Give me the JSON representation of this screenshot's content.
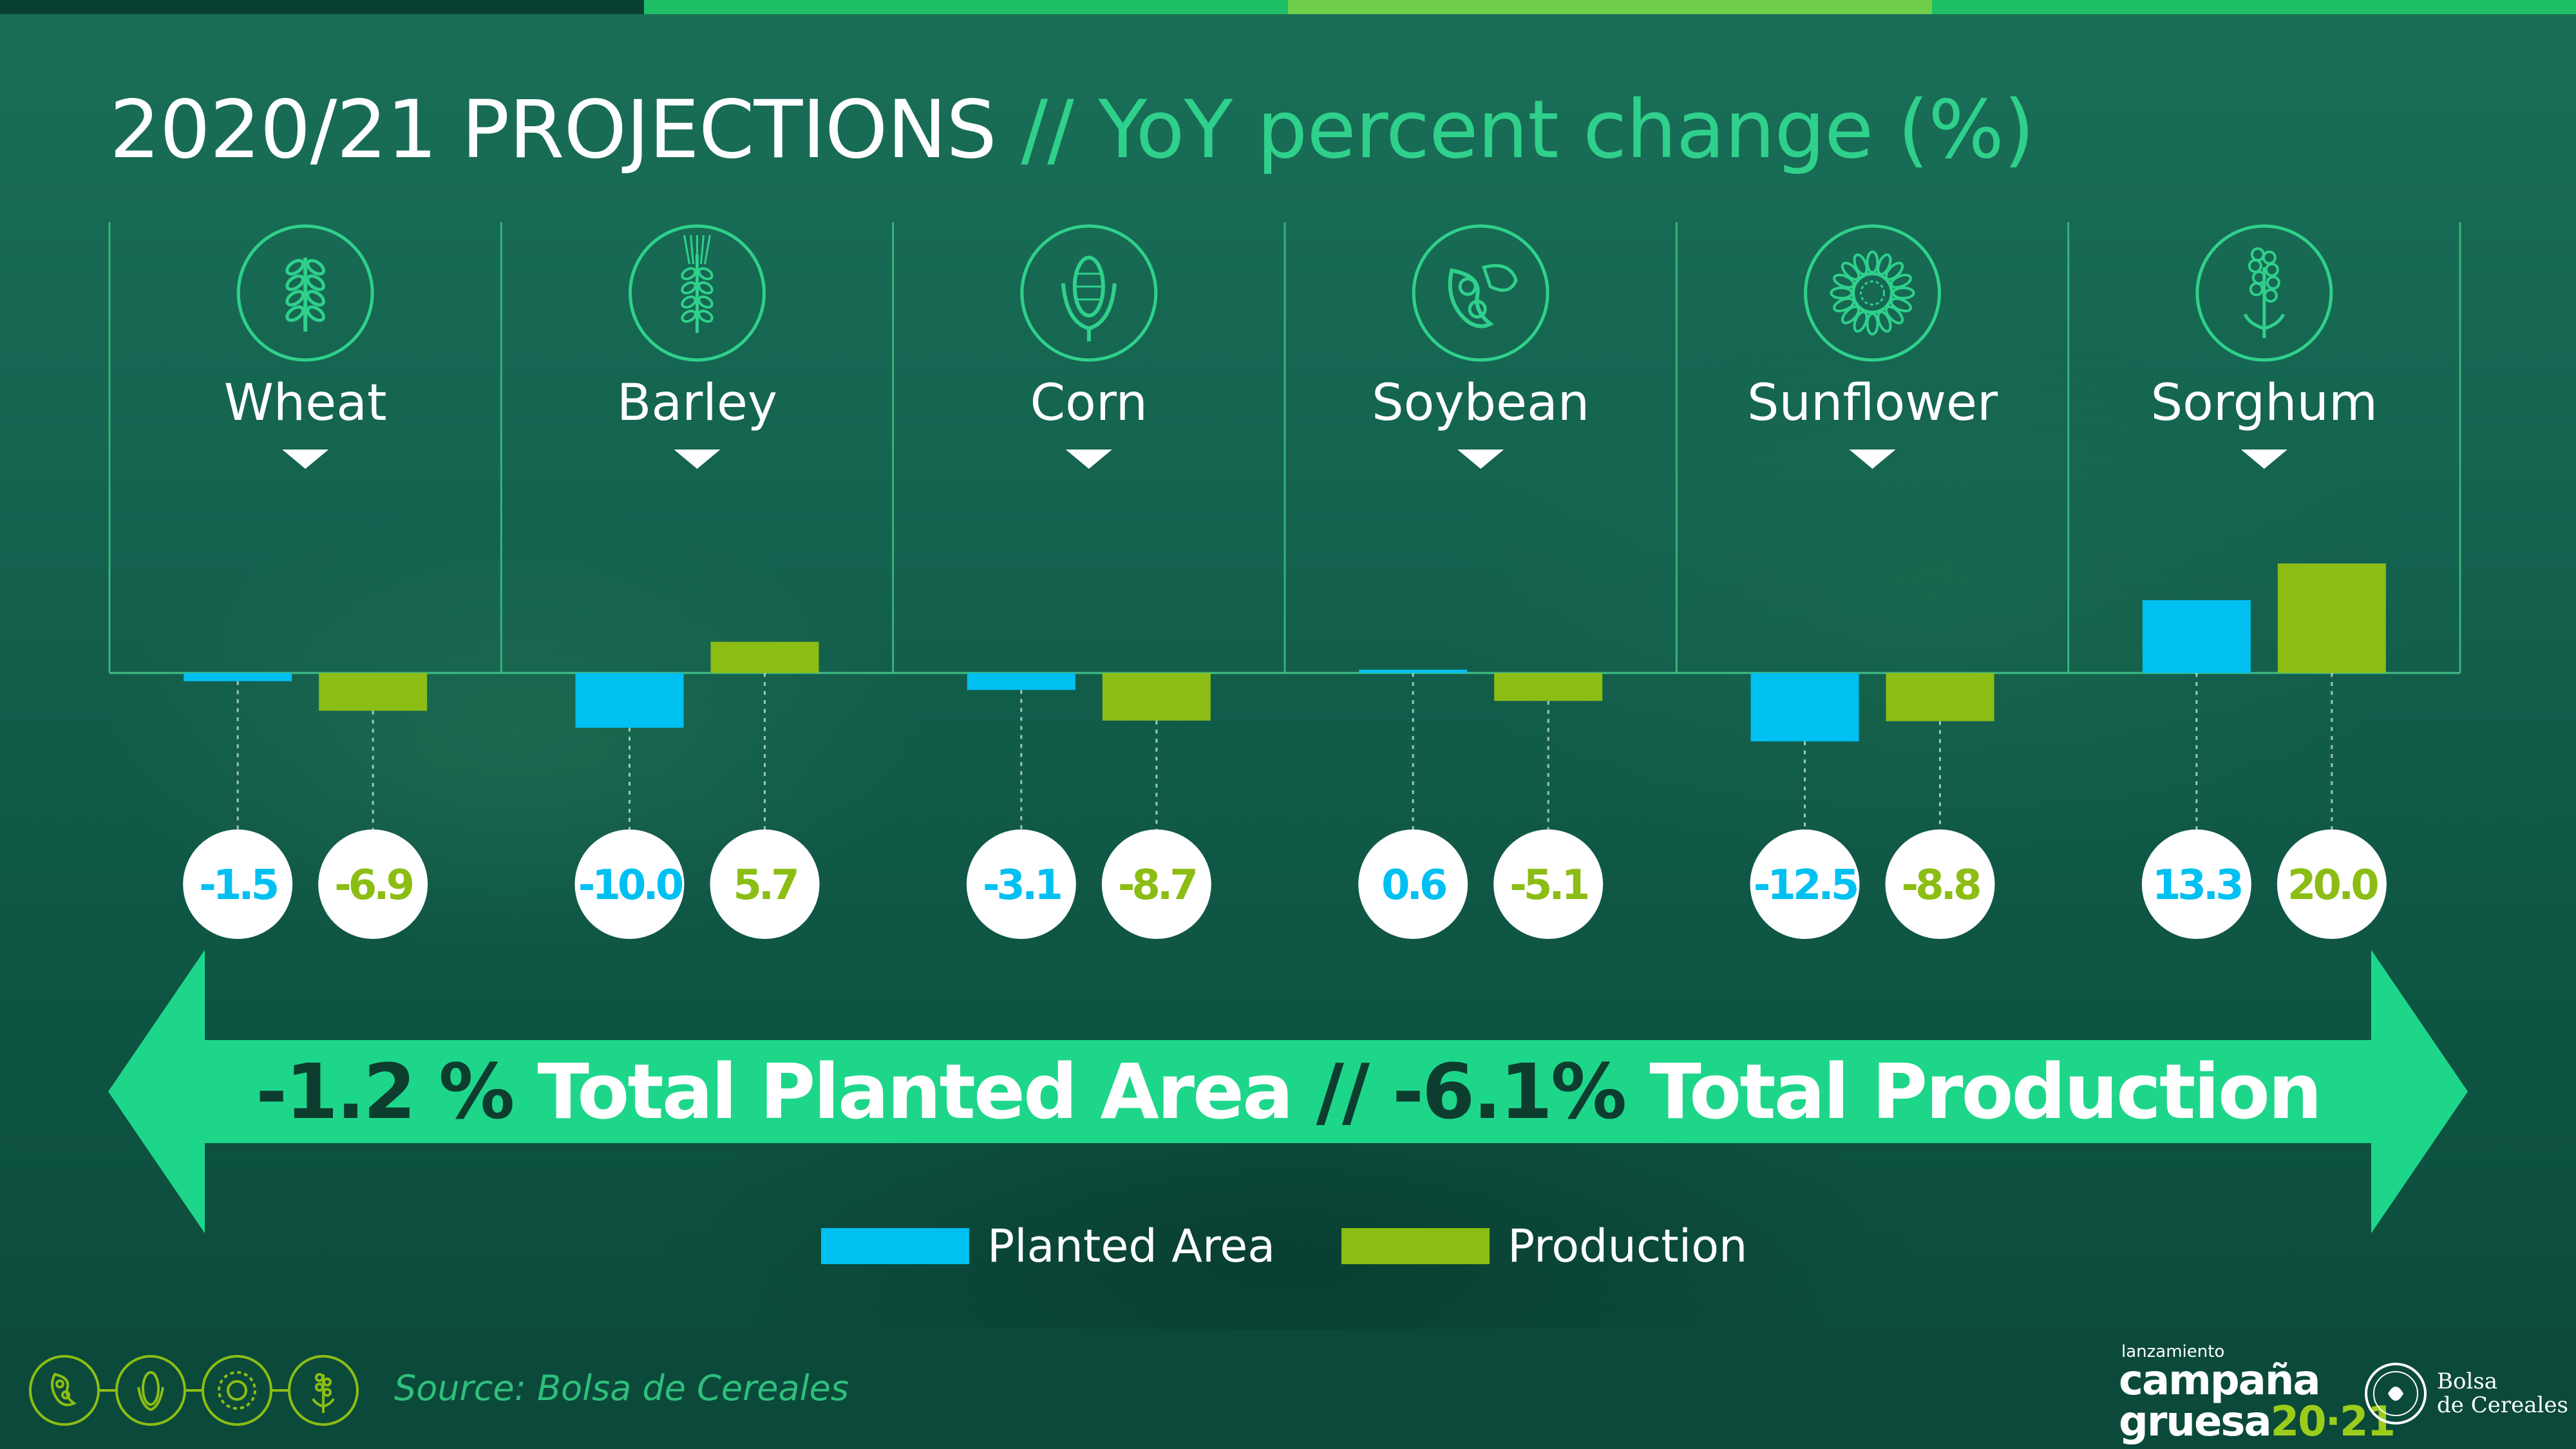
{
  "title": "2020/21 PROJECTIONS",
  "subtitle": "// YoY percent change (%)",
  "colors": {
    "planted_area": "#00c0f2",
    "production": "#8cbd14",
    "accent_green": "#2fd08b",
    "banner": "#1ed68a",
    "footer": "#0b4a3a"
  },
  "chart_data": {
    "type": "bar",
    "title": "2020/21 PROJECTIONS // YoY percent change (%)",
    "categories": [
      "Wheat",
      "Barley",
      "Corn",
      "Soybean",
      "Sunflower",
      "Sorghum"
    ],
    "category_icons": [
      "wheat-icon",
      "barley-icon",
      "corn-icon",
      "soybean-icon",
      "sunflower-icon",
      "sorghum-icon"
    ],
    "series": [
      {
        "name": "Planted Area",
        "values": [
          -1.5,
          -10.0,
          -3.1,
          0.6,
          -12.5,
          13.3
        ],
        "labels": [
          "-1.5",
          "-10.0",
          "-3.1",
          "0.6",
          "-12.5",
          "13.3"
        ],
        "color": "#00c0f2"
      },
      {
        "name": "Production",
        "values": [
          -6.9,
          5.7,
          -8.7,
          -5.1,
          -8.8,
          20.0
        ],
        "labels": [
          "-6.9",
          "5.7",
          "-8.7",
          "-5.1",
          "-8.8",
          "20.0"
        ],
        "color": "#8cbd14"
      }
    ],
    "xlabel": "",
    "ylabel": "",
    "ylim": [
      -12.5,
      20
    ],
    "grid": false,
    "legend_position": "bottom"
  },
  "banner": {
    "area_value": "-1.2 %",
    "area_label": " Total Planted Area",
    "separator": " // ",
    "prod_value": "-6.1%",
    "prod_label": " Total Production"
  },
  "legend": {
    "planted_area": "Planted Area",
    "production": "Production"
  },
  "footer": {
    "source": "Source: Bolsa de Cereales",
    "campaign_small": "lanzamiento",
    "campaign_line1": "campaña",
    "campaign_line2": "gruesa",
    "campaign_year": "20·21",
    "bolsa_line1": "Bolsa",
    "bolsa_line2": "de Cereales"
  }
}
